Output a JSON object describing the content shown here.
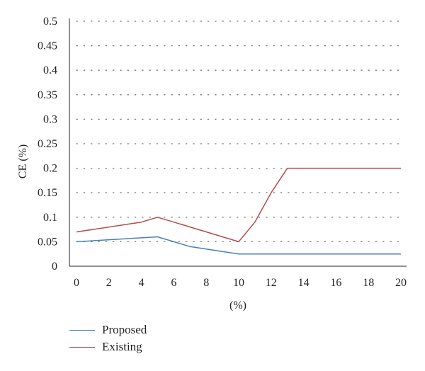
{
  "chart_data": {
    "type": "line",
    "title": "",
    "xlabel": "(%)",
    "ylabel": "CE (%)",
    "xlim": [
      0,
      20
    ],
    "ylim": [
      0,
      0.5
    ],
    "xticks": [
      "0",
      "2",
      "4",
      "6",
      "8",
      "10",
      "12",
      "14",
      "16",
      "18",
      "20"
    ],
    "yticks": [
      "0",
      "0.05",
      "0.1",
      "0.15",
      "0.2",
      "0.25",
      "0.3",
      "0.35",
      "0.4",
      "0.45",
      "0.5"
    ],
    "grid": "horizontal-dotted",
    "legend_position": "bottom-left",
    "series": [
      {
        "name": "Proposed",
        "color": "#4a7fb5",
        "x": [
          0,
          5,
          7,
          10,
          20
        ],
        "y": [
          0.05,
          0.06,
          0.04,
          0.025,
          0.025
        ]
      },
      {
        "name": "Existing",
        "color": "#b54a4a",
        "x": [
          0,
          4,
          5,
          10,
          11,
          12,
          13,
          20
        ],
        "y": [
          0.07,
          0.09,
          0.1,
          0.05,
          0.09,
          0.15,
          0.2,
          0.2
        ]
      }
    ]
  }
}
